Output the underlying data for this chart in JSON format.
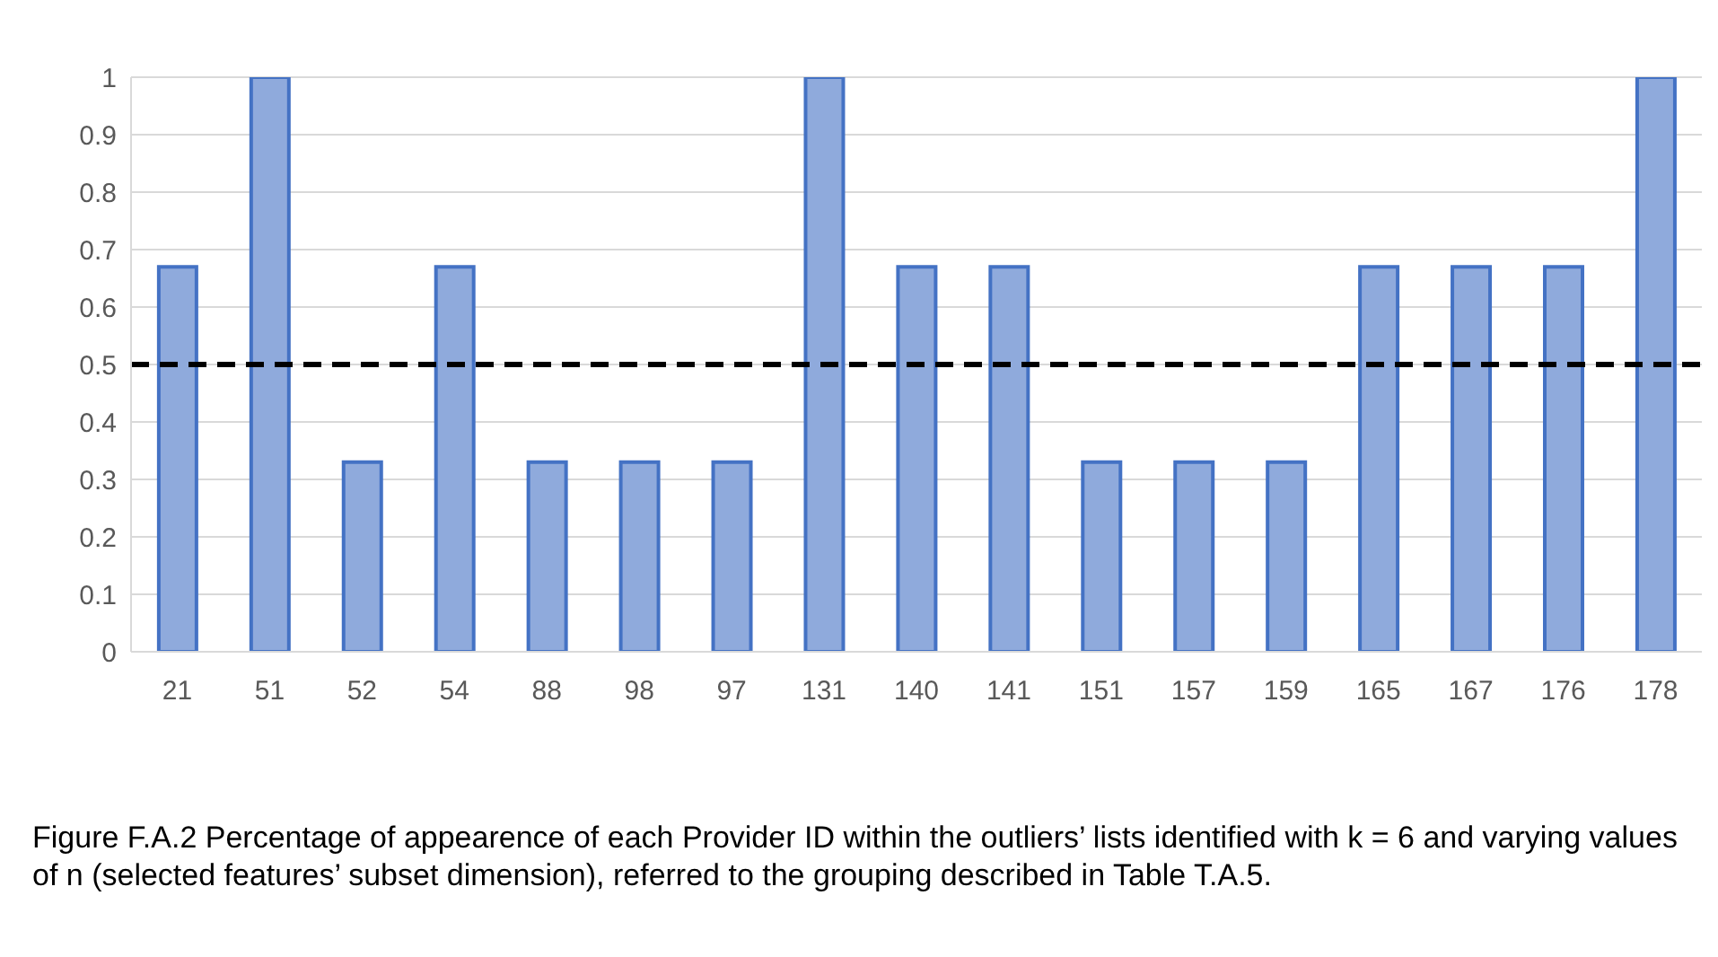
{
  "chart_data": {
    "type": "bar",
    "categories": [
      "21",
      "51",
      "52",
      "54",
      "88",
      "98",
      "97",
      "131",
      "140",
      "141",
      "151",
      "157",
      "159",
      "165",
      "167",
      "176",
      "178"
    ],
    "values": [
      0.67,
      1,
      0.33,
      0.67,
      0.33,
      0.33,
      0.33,
      1,
      0.67,
      0.67,
      0.33,
      0.33,
      0.33,
      0.67,
      0.67,
      0.67,
      1
    ],
    "color": "#8faadc",
    "ylim": [
      0,
      1
    ],
    "yticks": [
      0,
      0.1,
      0.2,
      0.3,
      0.4,
      0.5,
      0.6,
      0.7,
      0.8,
      0.9,
      1
    ],
    "grid": "y",
    "ref_lines": [
      {
        "axis": "y",
        "value": 0.5,
        "color": "#000000",
        "line_style": "dashed"
      }
    ],
    "annotations": [
      "Figure F.A.2 Percentage of appearence of each Provider ID within the outliers’ lists identified with k = 6 and varying values of n (selected features’ subset dimension), referred to the grouping described in Table T.A.5."
    ]
  }
}
